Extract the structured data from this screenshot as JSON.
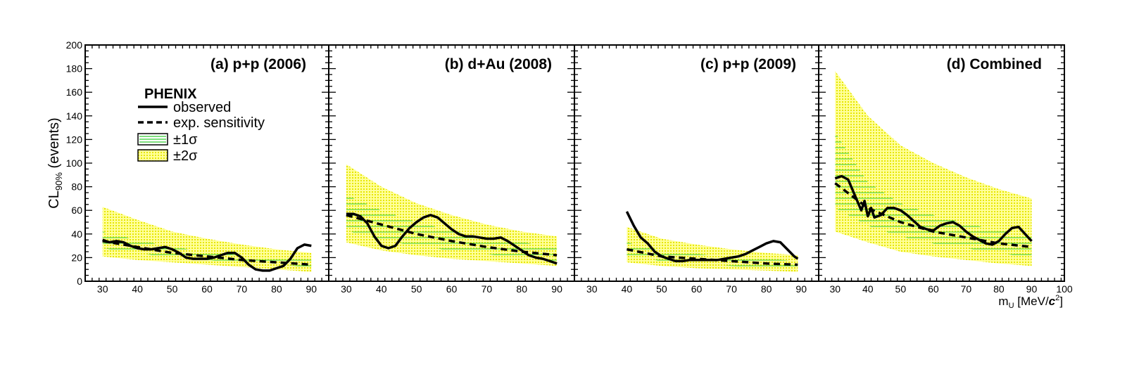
{
  "chart_data": {
    "type": "line",
    "ylabel_main": "CL",
    "ylabel_sub": "90%",
    "ylabel_suffix": " (events)",
    "xlabel_main": "m",
    "xlabel_sub": "U",
    "xlabel_open": " [MeV/",
    "xlabel_c": "c",
    "xlabel_sup": "2",
    "xlabel_close": "]",
    "ylim": [
      0,
      200
    ],
    "yticks": [
      "0",
      "20",
      "40",
      "60",
      "80",
      "100",
      "120",
      "140",
      "160",
      "180",
      "200"
    ],
    "legend": {
      "title": "PHENIX",
      "observed": "observed",
      "expected": "exp. sensitivity",
      "one_sigma": "±1σ",
      "two_sigma": "±2σ"
    },
    "colors": {
      "one_sigma": "#33cc33",
      "two_sigma_fill": "#ffff66",
      "two_sigma_dot": "#e6e600",
      "line": "#000000"
    },
    "panels": [
      {
        "title": "(a) p+p (2006)",
        "xlim": [
          25,
          95
        ],
        "xticks": [
          "30",
          "40",
          "50",
          "60",
          "70",
          "80",
          "90"
        ],
        "observed": {
          "x": [
            30,
            32,
            34,
            36,
            38,
            40,
            42,
            44,
            46,
            48,
            50,
            52,
            54,
            56,
            58,
            60,
            62,
            64,
            66,
            68,
            70,
            72,
            74,
            76,
            78,
            80,
            82,
            84,
            86,
            88,
            90
          ],
          "y": [
            35,
            33,
            34,
            33,
            30,
            28,
            27,
            27,
            28,
            29,
            27,
            24,
            20,
            19,
            19,
            19,
            20,
            22,
            24,
            24,
            20,
            14,
            10,
            9,
            9,
            11,
            13,
            19,
            28,
            31,
            30
          ]
        },
        "expected": {
          "x": [
            30,
            40,
            50,
            60,
            70,
            80,
            90
          ],
          "y": [
            34,
            29,
            24,
            21,
            18,
            16,
            14
          ]
        },
        "sigma1": {
          "x": [
            30,
            40,
            50,
            60,
            70,
            80,
            90
          ],
          "lo": [
            28,
            24,
            20,
            18,
            16,
            14,
            12
          ],
          "hi": [
            42,
            35,
            29,
            25,
            22,
            20,
            18
          ]
        },
        "sigma2": {
          "x": [
            30,
            40,
            50,
            60,
            70,
            80,
            90
          ],
          "lo": [
            21,
            18,
            16,
            14,
            12,
            10,
            8
          ],
          "hi": [
            63,
            52,
            42,
            36,
            31,
            27,
            24
          ]
        }
      },
      {
        "title": "(b) d+Au (2008)",
        "xlim": [
          25,
          95
        ],
        "xticks": [
          "30",
          "40",
          "50",
          "60",
          "70",
          "80",
          "90"
        ],
        "observed": {
          "x": [
            30,
            32,
            34,
            36,
            38,
            40,
            42,
            44,
            46,
            48,
            50,
            52,
            54,
            56,
            58,
            60,
            62,
            64,
            66,
            68,
            70,
            72,
            74,
            76,
            78,
            80,
            82,
            84,
            86,
            88,
            90
          ],
          "y": [
            57,
            57,
            55,
            49,
            38,
            30,
            28,
            30,
            38,
            45,
            50,
            54,
            56,
            54,
            49,
            44,
            40,
            38,
            38,
            37,
            36,
            36,
            37,
            34,
            30,
            26,
            22,
            20,
            19,
            17,
            15
          ]
        },
        "expected": {
          "x": [
            30,
            40,
            50,
            60,
            70,
            80,
            90
          ],
          "y": [
            56,
            48,
            40,
            34,
            29,
            25,
            22
          ]
        },
        "sigma1": {
          "x": [
            30,
            40,
            50,
            60,
            70,
            80,
            90
          ],
          "lo": [
            43,
            35,
            30,
            26,
            23,
            20,
            17
          ],
          "hi": [
            73,
            60,
            50,
            43,
            37,
            33,
            29
          ]
        },
        "sigma2": {
          "x": [
            30,
            40,
            50,
            60,
            70,
            80,
            90
          ],
          "lo": [
            33,
            26,
            22,
            19,
            17,
            15,
            13
          ],
          "hi": [
            99,
            80,
            66,
            56,
            48,
            42,
            38
          ]
        }
      },
      {
        "title": "(c) p+p (2009)",
        "xlim": [
          25,
          95
        ],
        "xticks": [
          "30",
          "40",
          "50",
          "60",
          "70",
          "80",
          "90"
        ],
        "observed": {
          "x": [
            40,
            42,
            44,
            46,
            48,
            50,
            52,
            54,
            56,
            58,
            60,
            62,
            64,
            66,
            68,
            70,
            72,
            74,
            76,
            78,
            80,
            82,
            84,
            86,
            88,
            89
          ],
          "y": [
            59,
            47,
            37,
            32,
            25,
            21,
            19,
            17,
            17,
            18,
            18,
            18,
            18,
            18,
            19,
            20,
            21,
            23,
            26,
            29,
            32,
            34,
            33,
            27,
            21,
            19
          ]
        },
        "expected": {
          "x": [
            40,
            50,
            60,
            70,
            80,
            89
          ],
          "y": [
            27,
            21,
            19,
            17,
            15,
            14
          ]
        },
        "sigma1": {
          "x": [
            40,
            50,
            60,
            70,
            80,
            89
          ],
          "lo": [
            22,
            17,
            15,
            13,
            12,
            11
          ],
          "hi": [
            33,
            26,
            23,
            21,
            19,
            17
          ]
        },
        "sigma2": {
          "x": [
            40,
            50,
            60,
            70,
            80,
            89
          ],
          "lo": [
            16,
            13,
            11,
            10,
            9,
            8
          ],
          "hi": [
            46,
            36,
            31,
            27,
            24,
            22
          ]
        }
      },
      {
        "title": "(d) Combined",
        "xlim": [
          25,
          100
        ],
        "xticks": [
          "30",
          "40",
          "50",
          "60",
          "70",
          "80",
          "90",
          "100"
        ],
        "observed": {
          "x": [
            30,
            32,
            34,
            36,
            38,
            39,
            40,
            41,
            42,
            44,
            46,
            48,
            50,
            52,
            54,
            56,
            58,
            60,
            62,
            64,
            66,
            68,
            70,
            72,
            74,
            76,
            78,
            80,
            82,
            84,
            86,
            88,
            90
          ],
          "y": [
            87,
            89,
            86,
            73,
            60,
            68,
            55,
            62,
            54,
            56,
            62,
            62,
            60,
            56,
            51,
            46,
            44,
            43,
            47,
            49,
            50,
            47,
            42,
            38,
            35,
            32,
            31,
            34,
            40,
            45,
            46,
            40,
            34
          ]
        },
        "expected": {
          "x": [
            30,
            40,
            50,
            60,
            70,
            80,
            90
          ],
          "y": [
            83,
            62,
            50,
            42,
            37,
            32,
            29
          ]
        },
        "sigma1": {
          "x": [
            30,
            40,
            50,
            60,
            70,
            80,
            90
          ],
          "lo": [
            62,
            47,
            38,
            32,
            28,
            24,
            20
          ],
          "hi": [
            126,
            84,
            66,
            56,
            49,
            43,
            38
          ]
        },
        "sigma2": {
          "x": [
            30,
            40,
            50,
            60,
            70,
            80,
            90
          ],
          "lo": [
            42,
            33,
            25,
            21,
            18,
            15,
            13
          ],
          "hi": [
            178,
            140,
            115,
            100,
            88,
            78,
            70
          ]
        }
      }
    ]
  }
}
